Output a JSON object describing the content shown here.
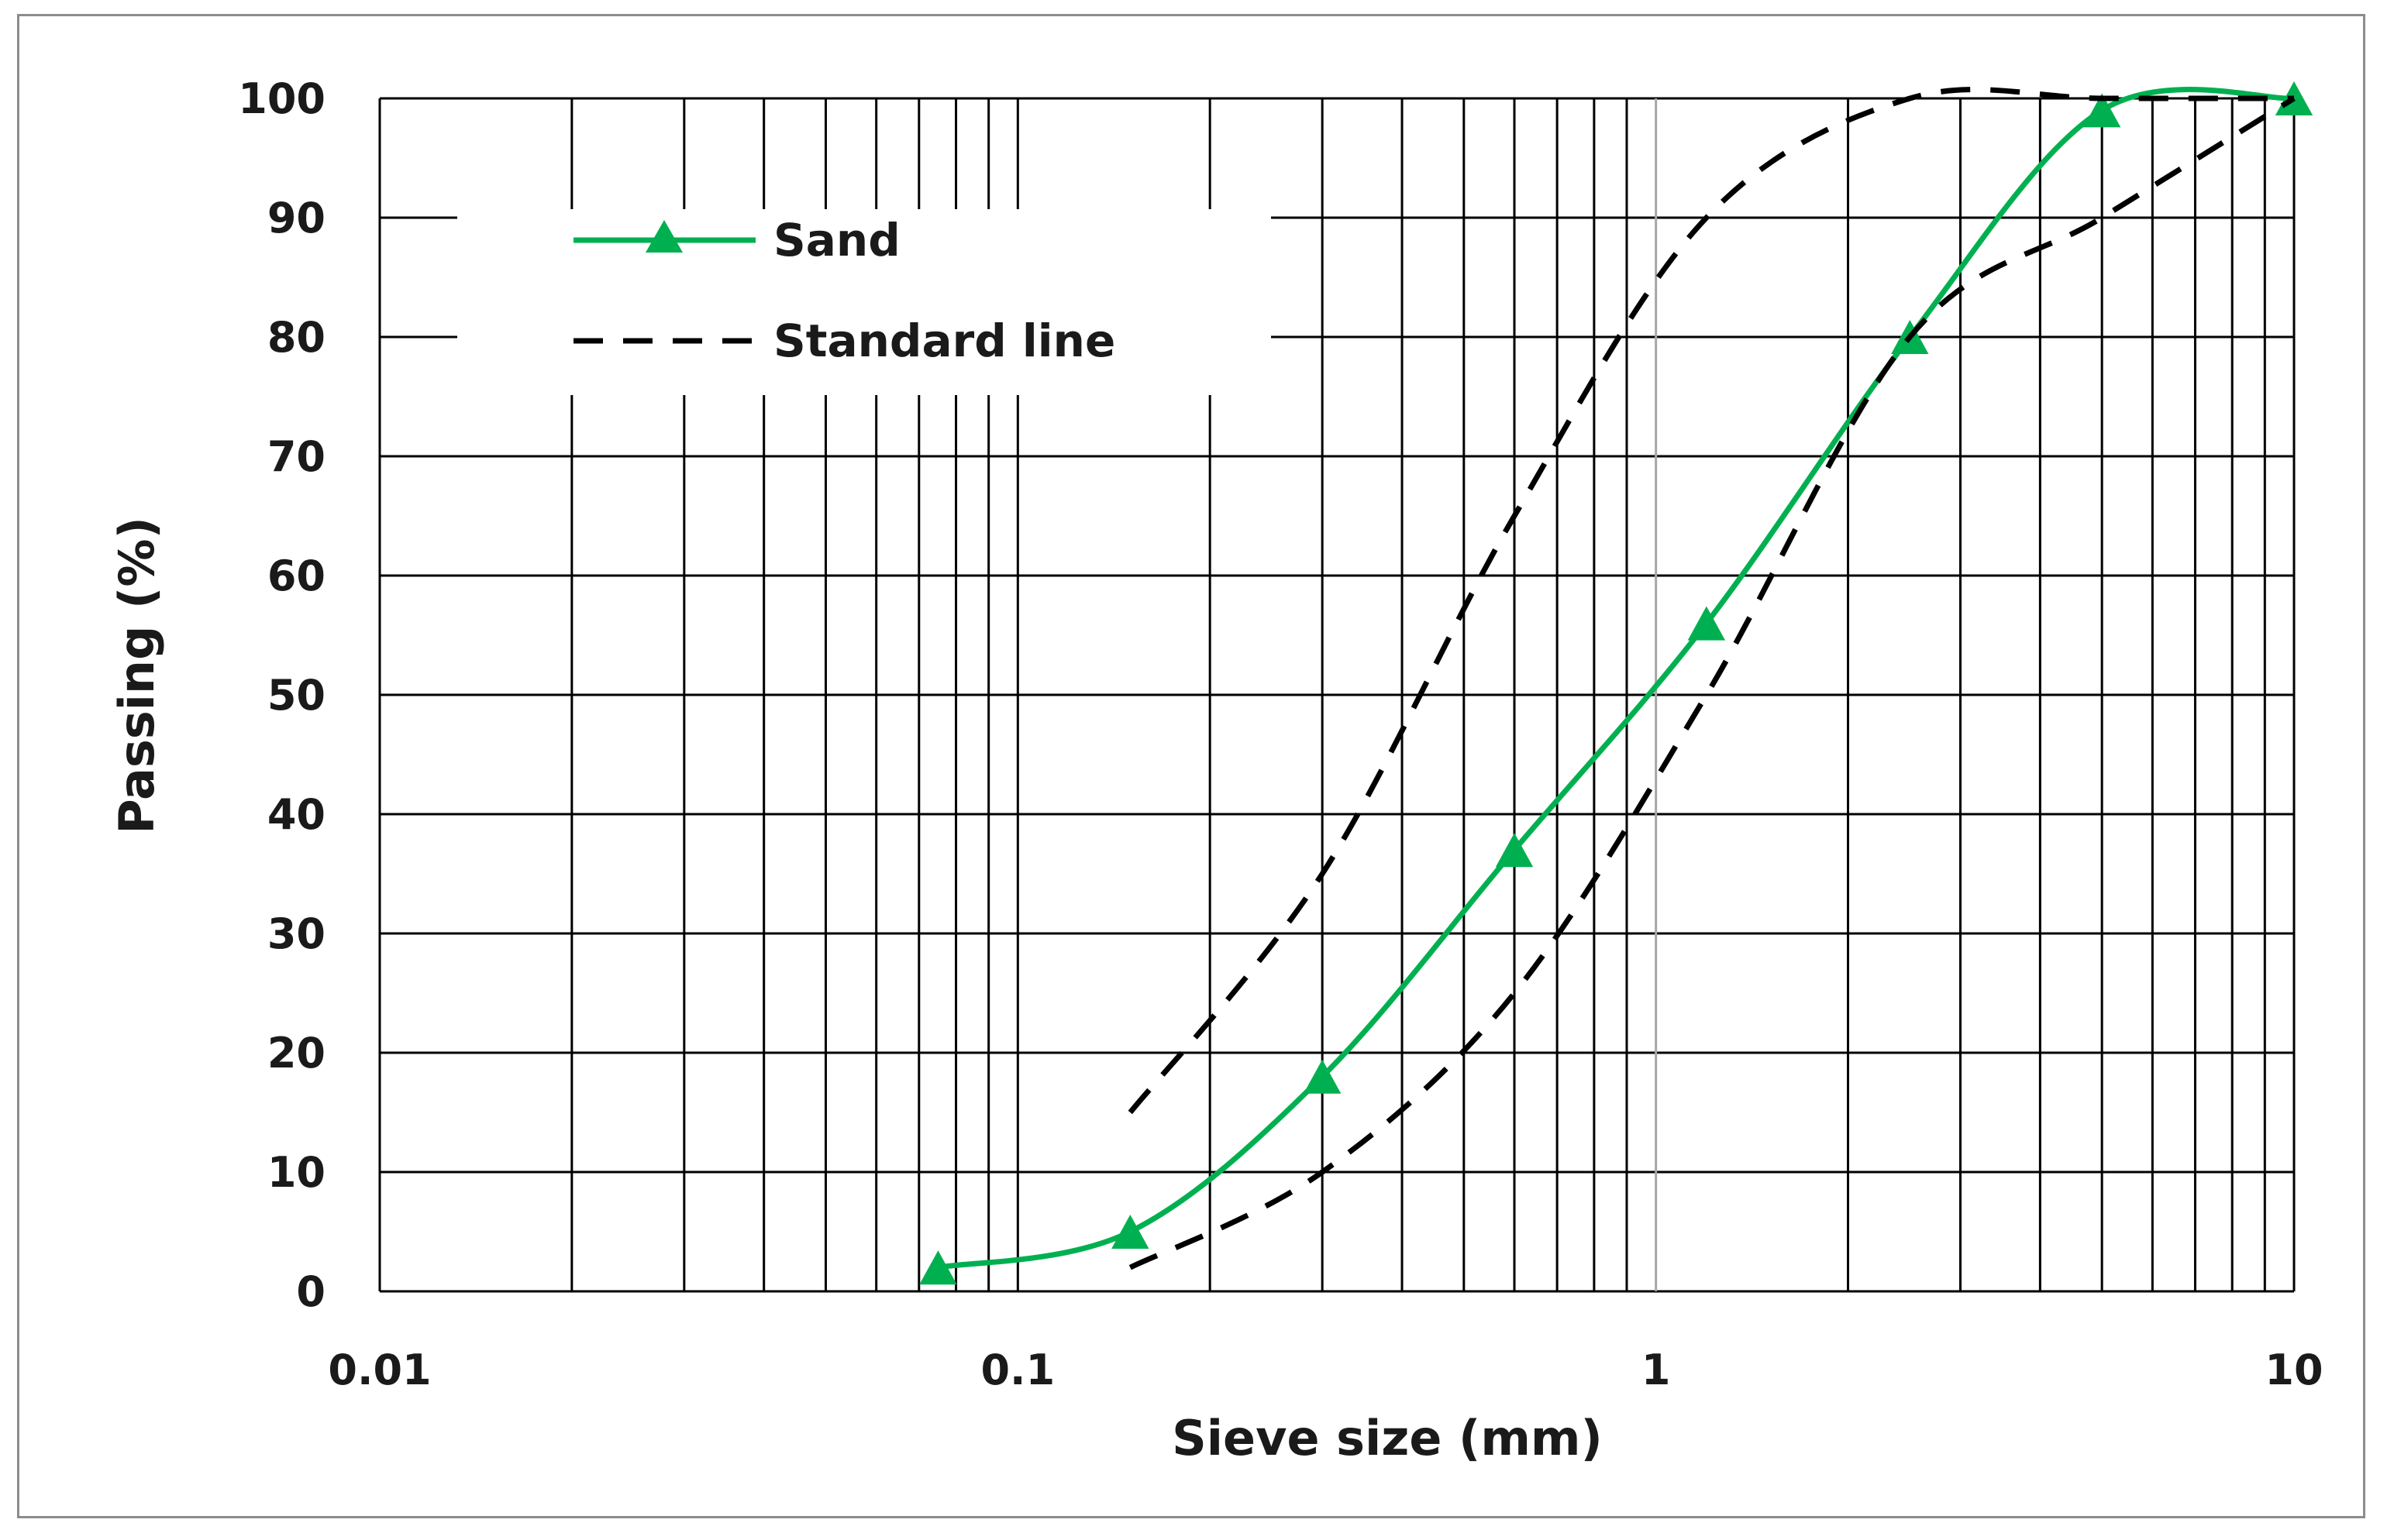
{
  "chart_data": {
    "type": "line",
    "xlabel": "Sieve size (mm)",
    "ylabel": "Passing (%)",
    "x_scale": "log",
    "xlim": [
      0.01,
      10
    ],
    "ylim": [
      0,
      100
    ],
    "x_ticks": [
      "0.01",
      "0.1",
      "1",
      "10"
    ],
    "y_ticks": [
      "0",
      "10",
      "20",
      "30",
      "40",
      "50",
      "60",
      "70",
      "80",
      "90",
      "100"
    ],
    "grid": true,
    "legend_position": "top-left",
    "series": [
      {
        "name": "Sand",
        "style": "solid-markers",
        "marker": "triangle",
        "color": "#00b050",
        "x": [
          0.075,
          0.15,
          0.3,
          0.6,
          1.2,
          2.5,
          5,
          10
        ],
        "y": [
          2,
          5,
          18,
          37,
          56,
          80,
          99,
          100
        ]
      },
      {
        "name": "Standard line",
        "style": "dashed",
        "color": "#000000",
        "x": [
          0.15,
          0.3,
          0.6,
          1.2,
          2.5,
          5,
          10
        ],
        "y": [
          15,
          35,
          65,
          90,
          100,
          100,
          100
        ]
      },
      {
        "name": "",
        "style": "dashed",
        "color": "#000000",
        "legend": false,
        "x": [
          0.15,
          0.3,
          0.6,
          1.2,
          2.5,
          5,
          10
        ],
        "y": [
          2,
          10,
          25,
          50,
          80,
          90,
          100
        ]
      }
    ]
  }
}
